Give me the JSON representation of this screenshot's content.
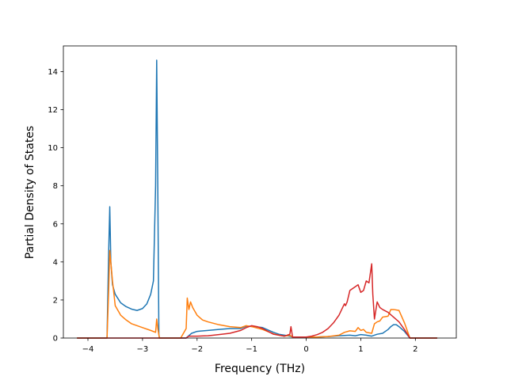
{
  "chart_data": {
    "type": "line",
    "title": "",
    "xlabel": "Frequency (THz)",
    "ylabel": "Partial Density of States",
    "xlim": [
      -4.45,
      2.75
    ],
    "ylim": [
      0,
      15.35
    ],
    "xticks": [
      -4,
      -3,
      -2,
      -1,
      0,
      1,
      2
    ],
    "xtick_labels": [
      "−4",
      "−3",
      "−2",
      "−1",
      "0",
      "1",
      "2"
    ],
    "yticks": [
      0,
      2,
      4,
      6,
      8,
      10,
      12,
      14
    ],
    "ytick_labels": [
      "0",
      "2",
      "4",
      "6",
      "8",
      "10",
      "12",
      "14"
    ],
    "grid": false,
    "legend": false,
    "series": [
      {
        "color": "#1f77b4",
        "x": [
          -4.2,
          -3.65,
          -3.62,
          -3.6,
          -3.58,
          -3.55,
          -3.5,
          -3.4,
          -3.3,
          -3.2,
          -3.1,
          -3.0,
          -2.92,
          -2.85,
          -2.8,
          -2.76,
          -2.74,
          -2.72,
          -2.7,
          -2.69,
          -2.2,
          -2.1,
          -2.0,
          -1.8,
          -1.6,
          -1.4,
          -1.2,
          -1.1,
          -1.0,
          -0.8,
          -0.6,
          -0.5,
          -0.4,
          -0.3,
          -0.25,
          0.0,
          0.2,
          0.4,
          0.6,
          0.8,
          0.9,
          1.0,
          1.1,
          1.2,
          1.3,
          1.4,
          1.5,
          1.55,
          1.6,
          1.65,
          1.7,
          1.8,
          1.9,
          2.0,
          2.4
        ],
        "y": [
          0,
          0,
          4.5,
          6.9,
          4.0,
          2.8,
          2.3,
          1.85,
          1.65,
          1.52,
          1.45,
          1.55,
          1.8,
          2.3,
          3.0,
          8.0,
          14.6,
          8.0,
          0.2,
          0,
          0,
          0.25,
          0.35,
          0.4,
          0.45,
          0.5,
          0.5,
          0.62,
          0.62,
          0.55,
          0.3,
          0.2,
          0.15,
          0.1,
          0.05,
          0.05,
          0.05,
          0.08,
          0.12,
          0.15,
          0.12,
          0.18,
          0.15,
          0.1,
          0.2,
          0.25,
          0.45,
          0.6,
          0.7,
          0.7,
          0.6,
          0.35,
          0,
          0,
          0
        ]
      },
      {
        "color": "#ff7f0e",
        "x": [
          -4.2,
          -3.65,
          -3.62,
          -3.6,
          -3.55,
          -3.5,
          -3.4,
          -3.3,
          -3.2,
          -3.0,
          -2.85,
          -2.76,
          -2.74,
          -2.72,
          -2.69,
          -2.3,
          -2.2,
          -2.18,
          -2.15,
          -2.12,
          -2.08,
          -2.0,
          -1.9,
          -1.8,
          -1.6,
          -1.4,
          -1.2,
          -1.1,
          -1.0,
          -0.8,
          -0.6,
          -0.5,
          -0.4,
          -0.3,
          -0.25,
          0.0,
          0.2,
          0.4,
          0.6,
          0.7,
          0.8,
          0.9,
          0.95,
          1.0,
          1.05,
          1.1,
          1.2,
          1.25,
          1.3,
          1.35,
          1.4,
          1.5,
          1.55,
          1.6,
          1.7,
          1.8,
          1.9,
          2.0,
          2.4
        ],
        "y": [
          0,
          0,
          2.5,
          4.6,
          3.0,
          1.7,
          1.2,
          0.95,
          0.75,
          0.55,
          0.4,
          0.3,
          1.0,
          0.5,
          0,
          0,
          0.5,
          2.1,
          1.5,
          1.9,
          1.6,
          1.2,
          0.95,
          0.85,
          0.7,
          0.6,
          0.55,
          0.65,
          0.6,
          0.45,
          0.22,
          0.15,
          0.1,
          0.15,
          0.05,
          0.05,
          0.05,
          0.08,
          0.15,
          0.3,
          0.38,
          0.35,
          0.55,
          0.4,
          0.45,
          0.3,
          0.25,
          0.75,
          0.85,
          0.9,
          1.1,
          1.15,
          1.5,
          1.5,
          1.45,
          0.8,
          0,
          0,
          0
        ]
      },
      {
        "color": "#d62728",
        "x": [
          -4.2,
          -2.2,
          -2.15,
          -2.0,
          -1.8,
          -1.6,
          -1.4,
          -1.2,
          -1.1,
          -1.0,
          -0.9,
          -0.8,
          -0.6,
          -0.5,
          -0.4,
          -0.3,
          -0.28,
          -0.25,
          0.0,
          0.1,
          0.2,
          0.3,
          0.4,
          0.5,
          0.6,
          0.7,
          0.72,
          0.75,
          0.8,
          0.85,
          0.9,
          0.95,
          1.0,
          1.05,
          1.1,
          1.15,
          1.2,
          1.22,
          1.25,
          1.3,
          1.35,
          1.4,
          1.5,
          1.6,
          1.7,
          1.8,
          1.9,
          2.0,
          2.4
        ],
        "y": [
          0,
          0,
          0.1,
          0.1,
          0.12,
          0.18,
          0.25,
          0.4,
          0.55,
          0.65,
          0.6,
          0.5,
          0.2,
          0.15,
          0.1,
          0.2,
          0.6,
          0.05,
          0.05,
          0.1,
          0.18,
          0.3,
          0.5,
          0.8,
          1.2,
          1.8,
          1.7,
          1.9,
          2.5,
          2.6,
          2.7,
          2.8,
          2.4,
          2.5,
          3.0,
          2.9,
          3.9,
          2.3,
          1.0,
          1.9,
          1.6,
          1.5,
          1.35,
          1.1,
          0.85,
          0.45,
          0,
          0,
          0
        ]
      }
    ]
  }
}
